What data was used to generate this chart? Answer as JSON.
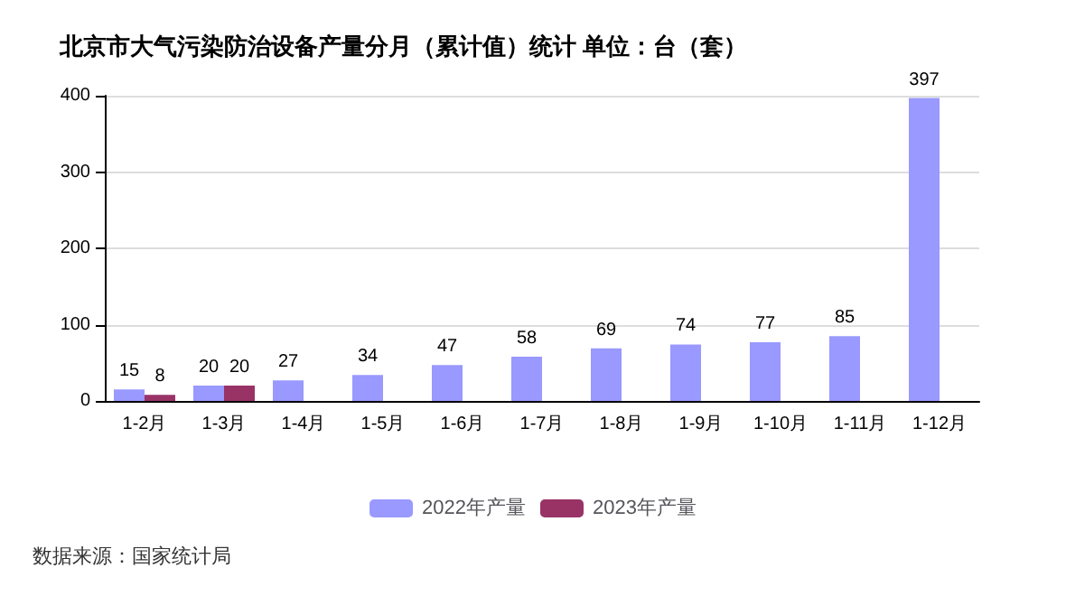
{
  "chart_data": {
    "type": "bar",
    "title": "北京市大气污染防治设备产量分月（累计值）统计 单位：台（套）",
    "categories": [
      "1-2月",
      "1-3月",
      "1-4月",
      "1-5月",
      "1-6月",
      "1-7月",
      "1-8月",
      "1-9月",
      "1-10月",
      "1-11月",
      "1-12月"
    ],
    "series": [
      {
        "name": "2022年产量",
        "color": "#9999ff",
        "values": [
          15,
          20,
          27,
          34,
          47,
          58,
          69,
          74,
          77,
          85,
          397
        ]
      },
      {
        "name": "2023年产量",
        "color": "#993366",
        "values": [
          8,
          20,
          null,
          null,
          null,
          null,
          null,
          null,
          null,
          null,
          null
        ]
      }
    ],
    "ylim": [
      0,
      400
    ],
    "yticks": [
      0,
      100,
      200,
      300,
      400
    ],
    "grid": "y",
    "legend": "bottom",
    "data_labels": true,
    "annotations": [
      "数据来源：国家统计局"
    ]
  }
}
